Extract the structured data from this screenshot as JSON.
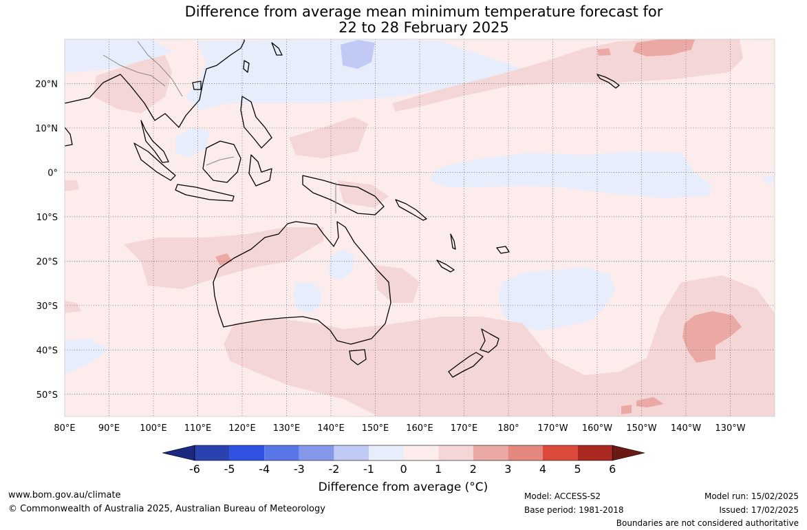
{
  "title_line1": "Difference from average mean minimum temperature forecast for",
  "title_line2": "22 to 28 February 2025",
  "map": {
    "lon_range": [
      80,
      240
    ],
    "lat_range": [
      -55,
      30
    ],
    "lon_ticks": [
      "80°E",
      "90°E",
      "100°E",
      "110°E",
      "120°E",
      "130°E",
      "140°E",
      "150°E",
      "160°E",
      "170°E",
      "180°",
      "170°W",
      "160°W",
      "150°W",
      "140°W",
      "130°W"
    ],
    "lat_ticks": [
      "20°N",
      "10°N",
      "0°",
      "10°S",
      "20°S",
      "30°S",
      "40°S",
      "50°S"
    ],
    "lat_tick_values": [
      20,
      10,
      0,
      -10,
      -20,
      -30,
      -40,
      -50
    ],
    "grid": true
  },
  "colorbar": {
    "labels": [
      "-6",
      "-5",
      "-4",
      "-3",
      "-2",
      "-1",
      "0",
      "1",
      "2",
      "3",
      "4",
      "5",
      "6"
    ],
    "colors": [
      "#1b2a80",
      "#2a41b0",
      "#2f52e0",
      "#5a77e8",
      "#8598ea",
      "#c1c9f5",
      "#e8edfb",
      "#fcecec",
      "#f5d6d6",
      "#eba9a6",
      "#e4877f",
      "#dc4a3b",
      "#aa2a22",
      "#6a1a14"
    ],
    "label": "Difference from average (°C)"
  },
  "footer": {
    "site": "www.bom.gov.au/climate",
    "copyright": "© Commonwealth of Australia 2025, Australian Bureau of Meteorology",
    "model": "Model: ACCESS-S2",
    "base_period": "Base period: 1981-2018",
    "model_run": "Model run: 15/02/2025",
    "issued": "Issued: 17/02/2025",
    "boundaries": "Boundaries are not considered authoritative"
  }
}
